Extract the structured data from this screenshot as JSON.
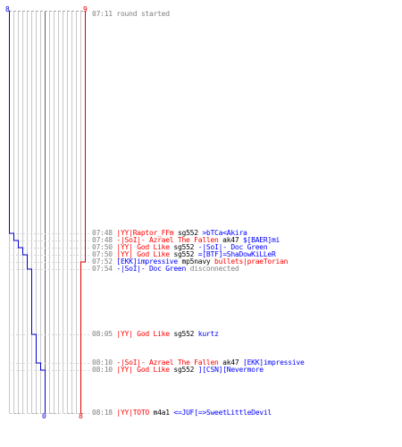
{
  "colors": {
    "red": "#e00000",
    "blue": "#0000d0",
    "grid": "#c8c8c8",
    "tick": "#a8a8a8",
    "dash": "#d8d8d8",
    "mid": "#606060"
  },
  "scores": {
    "top_left": "8",
    "top_right": "9",
    "bottom_left": "0",
    "bottom_right": "8"
  },
  "events": [
    {
      "time": "07:11",
      "msg": "round started"
    },
    {
      "time": "07:48",
      "killer": "|YY|Raptor_FFm",
      "killer_team": "red",
      "weapon": "sg552",
      "victim": ">bTCa<Akira",
      "victim_team": "blue"
    },
    {
      "time": "07:48",
      "killer": "-|SoI|- Azrael The Fallen",
      "killer_team": "red",
      "weapon": "ak47",
      "victim": "$[BAER]mi",
      "victim_team": "blue"
    },
    {
      "time": "07:50",
      "killer": "|YY| God Like",
      "killer_team": "red",
      "weapon": "sg552",
      "victim": "-|SoI|- Doc Green",
      "victim_team": "blue"
    },
    {
      "time": "07:50",
      "killer": "|YY| God Like",
      "killer_team": "red",
      "weapon": "sg552",
      "victim": "=[BTF]=ShaDowKiLLeR",
      "victim_team": "blue"
    },
    {
      "time": "07:52",
      "killer": "[EKK]impressive",
      "killer_team": "blue",
      "weapon": "mp5navy",
      "victim": "bullets|praeTorian",
      "victim_team": "red"
    },
    {
      "time": "07:54",
      "player": "-|SoI|- Doc Green",
      "player_team": "blue",
      "msg": "disconnected"
    },
    {
      "time": "08:05",
      "killer": "|YY| God Like",
      "killer_team": "red",
      "weapon": "sg552",
      "victim": "kurtz",
      "victim_team": "blue"
    },
    {
      "time": "08:10",
      "killer": "-|SoI|- Azrael The Fallen",
      "killer_team": "red",
      "weapon": "ak47",
      "victim": "[EKK]impressive",
      "victim_team": "blue"
    },
    {
      "time": "08:10",
      "killer": "|YY| God Like",
      "killer_team": "red",
      "weapon": "sg552",
      "victim": "][CSN][Nevermore",
      "victim_team": "blue"
    },
    {
      "time": "08:18",
      "killer": "|YY|TOTO",
      "killer_team": "red",
      "weapon": "m4a1",
      "victim": "<=JUF[=>SweetLittleDevil",
      "victim_team": "blue"
    }
  ]
}
